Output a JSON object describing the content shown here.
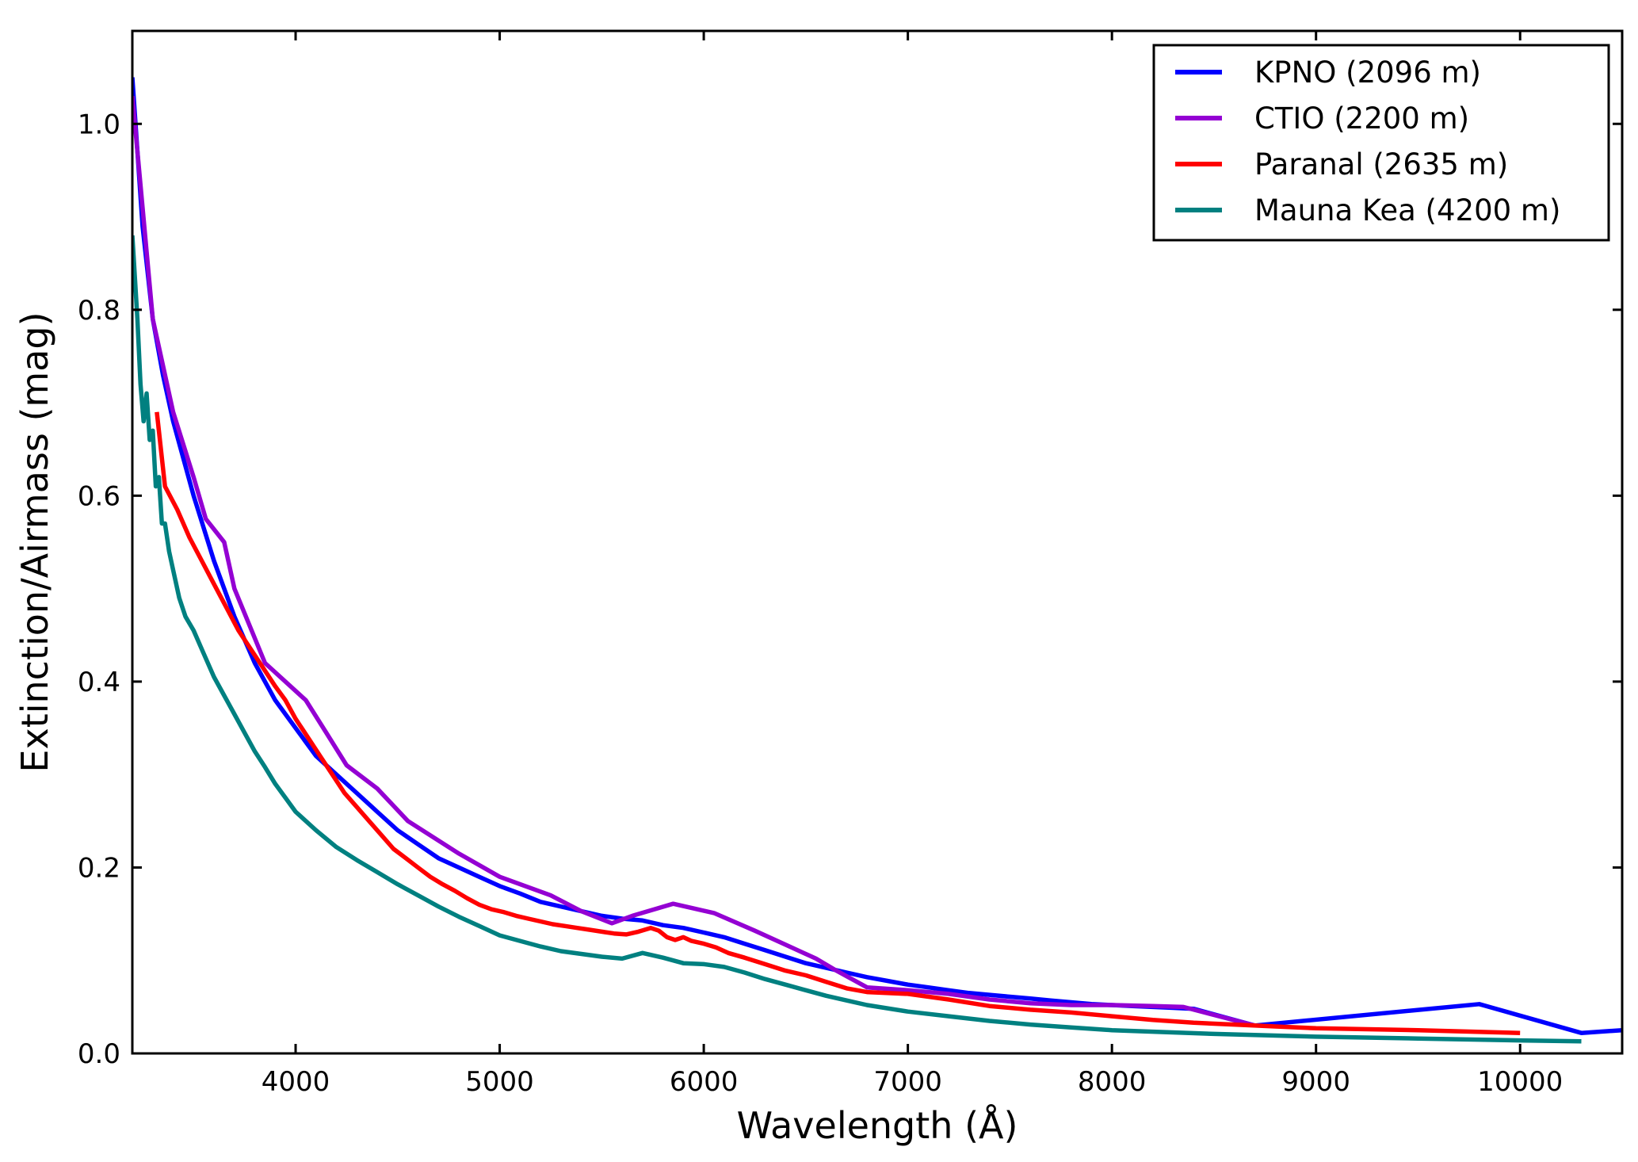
{
  "chart_data": {
    "type": "line",
    "title": "",
    "xlabel": "Wavelength (Å)",
    "ylabel": "Extinction/Airmass (mag)",
    "xlim": [
      3200,
      10500
    ],
    "ylim": [
      0.0,
      1.1
    ],
    "xticks": [
      "4000",
      "5000",
      "6000",
      "7000",
      "8000",
      "9000",
      "10000"
    ],
    "xtick_values": [
      4000,
      5000,
      6000,
      7000,
      8000,
      9000,
      10000
    ],
    "yticks": [
      "0.0",
      "0.2",
      "0.4",
      "0.6",
      "0.8",
      "1.0"
    ],
    "ytick_values": [
      0.0,
      0.2,
      0.4,
      0.6,
      0.8,
      1.0
    ],
    "grid": false,
    "legend": "top-right",
    "series": [
      {
        "name": "KPNO (2096 m)",
        "color": "#0000ff",
        "x": [
          3200,
          3250,
          3300,
          3350,
          3400,
          3450,
          3500,
          3600,
          3700,
          3800,
          3900,
          4000,
          4100,
          4200,
          4300,
          4400,
          4500,
          4600,
          4700,
          4800,
          4900,
          5000,
          5100,
          5200,
          5300,
          5400,
          5500,
          5600,
          5700,
          5800,
          5900,
          6000,
          6100,
          6200,
          6300,
          6400,
          6500,
          6600,
          6700,
          6800,
          6900,
          7000,
          7100,
          7200,
          7300,
          7400,
          7500,
          7600,
          7700,
          7800,
          7900,
          8000,
          8100,
          8200,
          8300,
          8400,
          8700,
          9800,
          10300,
          10500
        ],
        "y": [
          1.05,
          0.89,
          0.79,
          0.73,
          0.68,
          0.64,
          0.6,
          0.53,
          0.47,
          0.42,
          0.38,
          0.35,
          0.32,
          0.3,
          0.28,
          0.26,
          0.24,
          0.225,
          0.21,
          0.2,
          0.19,
          0.18,
          0.172,
          0.163,
          0.158,
          0.153,
          0.148,
          0.145,
          0.143,
          0.138,
          0.135,
          0.13,
          0.125,
          0.118,
          0.111,
          0.104,
          0.097,
          0.092,
          0.087,
          0.082,
          0.078,
          0.074,
          0.071,
          0.068,
          0.065,
          0.063,
          0.061,
          0.059,
          0.057,
          0.055,
          0.053,
          0.052,
          0.051,
          0.05,
          0.049,
          0.048,
          0.03,
          0.053,
          0.022,
          0.025
        ]
      },
      {
        "name": "CTIO (2200 m)",
        "color": "#9400d3",
        "x": [
          3200,
          3300,
          3400,
          3500,
          3560,
          3650,
          3700,
          3850,
          4050,
          4150,
          4250,
          4400,
          4550,
          4800,
          5000,
          5250,
          5400,
          5550,
          5650,
          5850,
          6050,
          6250,
          6400,
          6550,
          6650,
          6800,
          7000,
          7200,
          7400,
          7600,
          7800,
          8000,
          8200,
          8350,
          8700
        ],
        "y": [
          1.03,
          0.79,
          0.69,
          0.62,
          0.575,
          0.55,
          0.5,
          0.42,
          0.38,
          0.345,
          0.31,
          0.285,
          0.25,
          0.215,
          0.19,
          0.17,
          0.153,
          0.14,
          0.148,
          0.161,
          0.151,
          0.132,
          0.117,
          0.102,
          0.089,
          0.071,
          0.068,
          0.064,
          0.058,
          0.054,
          0.052,
          0.052,
          0.051,
          0.05,
          0.03
        ]
      },
      {
        "name": "Paranal (2635 m)",
        "color": "#ff0000",
        "x": [
          3320,
          3360,
          3420,
          3480,
          3540,
          3600,
          3660,
          3720,
          3780,
          3840,
          3900,
          3950,
          4000,
          4060,
          4120,
          4180,
          4240,
          4300,
          4360,
          4420,
          4480,
          4540,
          4600,
          4660,
          4720,
          4780,
          4840,
          4900,
          4960,
          5020,
          5080,
          5140,
          5200,
          5260,
          5320,
          5380,
          5440,
          5500,
          5560,
          5620,
          5680,
          5740,
          5780,
          5820,
          5860,
          5900,
          5940,
          6000,
          6060,
          6120,
          6200,
          6300,
          6400,
          6500,
          6600,
          6700,
          6800,
          7000,
          7200,
          7400,
          7600,
          7800,
          8000,
          8200,
          8400,
          8600,
          8800,
          9000,
          9500,
          10000
        ],
        "y": [
          0.69,
          0.61,
          0.585,
          0.555,
          0.53,
          0.505,
          0.48,
          0.455,
          0.435,
          0.415,
          0.395,
          0.38,
          0.36,
          0.34,
          0.32,
          0.3,
          0.28,
          0.265,
          0.25,
          0.235,
          0.22,
          0.21,
          0.2,
          0.19,
          0.182,
          0.175,
          0.167,
          0.16,
          0.155,
          0.152,
          0.148,
          0.145,
          0.142,
          0.139,
          0.137,
          0.135,
          0.133,
          0.131,
          0.129,
          0.128,
          0.131,
          0.135,
          0.132,
          0.125,
          0.122,
          0.125,
          0.121,
          0.118,
          0.114,
          0.108,
          0.103,
          0.096,
          0.089,
          0.084,
          0.077,
          0.07,
          0.066,
          0.064,
          0.058,
          0.051,
          0.047,
          0.044,
          0.04,
          0.036,
          0.033,
          0.031,
          0.029,
          0.027,
          0.025,
          0.022
        ]
      },
      {
        "name": "Mauna Kea (4200 m)",
        "color": "#008080",
        "x": [
          3200,
          3225,
          3240,
          3255,
          3270,
          3285,
          3300,
          3315,
          3330,
          3345,
          3360,
          3380,
          3400,
          3430,
          3460,
          3500,
          3550,
          3600,
          3650,
          3700,
          3750,
          3800,
          3850,
          3900,
          3950,
          4000,
          4100,
          4200,
          4300,
          4400,
          4500,
          4600,
          4700,
          4800,
          4900,
          5000,
          5100,
          5200,
          5300,
          5400,
          5500,
          5600,
          5700,
          5800,
          5900,
          6000,
          6100,
          6200,
          6300,
          6400,
          6500,
          6600,
          6700,
          6800,
          7000,
          7200,
          7400,
          7600,
          7800,
          8000,
          8500,
          9000,
          9500,
          10000,
          10300
        ],
        "y": [
          0.88,
          0.79,
          0.72,
          0.68,
          0.71,
          0.66,
          0.67,
          0.61,
          0.62,
          0.57,
          0.57,
          0.54,
          0.52,
          0.49,
          0.47,
          0.455,
          0.43,
          0.405,
          0.385,
          0.365,
          0.345,
          0.325,
          0.308,
          0.29,
          0.275,
          0.26,
          0.24,
          0.222,
          0.208,
          0.195,
          0.182,
          0.17,
          0.158,
          0.147,
          0.137,
          0.127,
          0.121,
          0.115,
          0.11,
          0.107,
          0.104,
          0.102,
          0.108,
          0.103,
          0.097,
          0.096,
          0.093,
          0.087,
          0.08,
          0.074,
          0.068,
          0.062,
          0.057,
          0.052,
          0.045,
          0.04,
          0.035,
          0.031,
          0.028,
          0.025,
          0.021,
          0.018,
          0.016,
          0.014,
          0.013
        ]
      }
    ]
  }
}
